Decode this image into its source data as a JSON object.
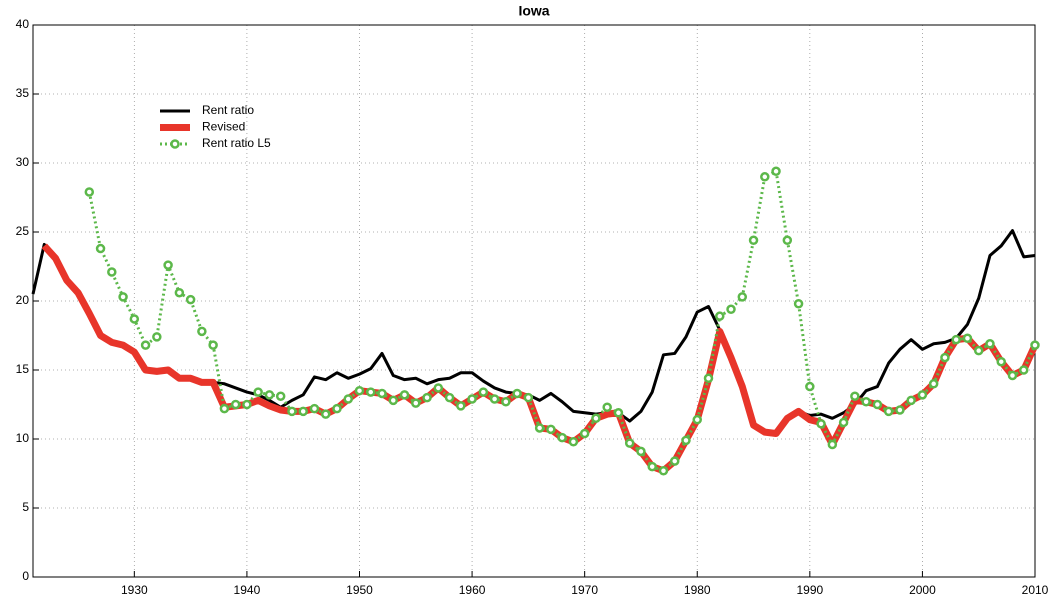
{
  "chart_data": {
    "type": "line",
    "title": "Iowa",
    "x": [
      1921,
      1922,
      1923,
      1924,
      1925,
      1926,
      1927,
      1928,
      1929,
      1930,
      1931,
      1932,
      1933,
      1934,
      1935,
      1936,
      1937,
      1938,
      1939,
      1940,
      1941,
      1942,
      1943,
      1944,
      1945,
      1946,
      1947,
      1948,
      1949,
      1950,
      1951,
      1952,
      1953,
      1954,
      1955,
      1956,
      1957,
      1958,
      1959,
      1960,
      1961,
      1962,
      1963,
      1964,
      1965,
      1966,
      1967,
      1968,
      1969,
      1970,
      1971,
      1972,
      1973,
      1974,
      1975,
      1976,
      1977,
      1978,
      1979,
      1980,
      1981,
      1982,
      1983,
      1984,
      1985,
      1986,
      1987,
      1988,
      1989,
      1990,
      1991,
      1992,
      1993,
      1994,
      1995,
      1996,
      1997,
      1998,
      1999,
      2000,
      2001,
      2002,
      2003,
      2004,
      2005,
      2006,
      2007,
      2008,
      2009,
      2010
    ],
    "series": [
      {
        "name": "Rent ratio",
        "color": "#000000",
        "width": 3,
        "values": [
          20.5,
          24.1,
          23.1,
          21.5,
          20.6,
          19.1,
          17.5,
          17.0,
          16.8,
          16.3,
          15.0,
          14.9,
          15.0,
          14.4,
          14.4,
          14.1,
          14.1,
          14.0,
          13.7,
          13.4,
          13.2,
          12.8,
          12.3,
          12.8,
          13.2,
          14.5,
          14.3,
          14.8,
          14.4,
          14.7,
          15.1,
          16.2,
          14.6,
          14.3,
          14.4,
          14.0,
          14.3,
          14.4,
          14.8,
          14.8,
          14.2,
          13.7,
          13.4,
          13.3,
          13.2,
          12.8,
          13.3,
          12.7,
          12.0,
          11.9,
          11.8,
          11.9,
          11.9,
          11.3,
          12.0,
          13.4,
          16.1,
          16.2,
          17.4,
          19.2,
          19.6,
          17.9,
          15.9,
          13.8,
          11.0,
          10.5,
          10.4,
          11.5,
          12.0,
          11.7,
          11.8,
          11.5,
          11.9,
          12.5,
          13.5,
          13.8,
          15.5,
          16.5,
          17.2,
          16.5,
          16.9,
          17.0,
          17.3,
          18.3,
          20.2,
          23.3,
          24.0,
          25.1,
          23.2,
          23.3
        ]
      },
      {
        "name": "Revised",
        "color": "#e8352a",
        "width": 7,
        "values": [
          null,
          24.0,
          23.1,
          21.5,
          20.6,
          19.1,
          17.5,
          17.0,
          16.8,
          16.3,
          15.0,
          14.9,
          15.0,
          14.4,
          14.4,
          14.1,
          14.1,
          12.3,
          12.4,
          12.5,
          12.8,
          12.4,
          12.1,
          12.0,
          12.0,
          12.2,
          11.8,
          12.2,
          12.9,
          13.5,
          13.4,
          13.3,
          12.8,
          13.2,
          12.6,
          13.0,
          13.7,
          13.0,
          12.4,
          12.9,
          13.4,
          12.9,
          12.7,
          13.3,
          13.0,
          10.8,
          10.7,
          10.1,
          9.8,
          10.4,
          11.5,
          11.8,
          11.9,
          9.7,
          9.1,
          8.0,
          7.7,
          8.4,
          9.9,
          11.4,
          14.3,
          17.8,
          15.9,
          13.8,
          11.0,
          10.5,
          10.4,
          11.5,
          12.0,
          11.4,
          11.2,
          9.6,
          11.2,
          12.8,
          12.7,
          12.5,
          12.0,
          12.1,
          12.8,
          13.2,
          14.0,
          15.9,
          17.2,
          17.3,
          16.4,
          16.9,
          15.6,
          14.6,
          15.0,
          16.8
        ]
      },
      {
        "name": "Rent ratio L5",
        "color": "#5cb84a",
        "width": 3,
        "dashed": true,
        "markers": true,
        "values": [
          null,
          null,
          null,
          null,
          null,
          27.9,
          23.8,
          22.1,
          20.3,
          18.7,
          16.8,
          17.4,
          22.6,
          20.6,
          20.1,
          17.8,
          16.8,
          12.2,
          12.5,
          12.5,
          13.4,
          13.2,
          13.1,
          12.0,
          12.0,
          12.2,
          11.8,
          12.2,
          12.9,
          13.5,
          13.4,
          13.3,
          12.8,
          13.2,
          12.6,
          13.0,
          13.7,
          13.0,
          12.4,
          12.9,
          13.4,
          12.9,
          12.7,
          13.3,
          13.0,
          10.8,
          10.7,
          10.1,
          9.8,
          10.4,
          11.5,
          12.3,
          11.9,
          9.7,
          9.1,
          8.0,
          7.7,
          8.4,
          9.9,
          11.4,
          14.4,
          18.9,
          19.4,
          20.3,
          24.4,
          29.0,
          29.4,
          24.4,
          19.8,
          13.8,
          11.1,
          9.6,
          11.2,
          13.1,
          12.7,
          12.5,
          12.0,
          12.1,
          12.8,
          13.2,
          14.0,
          15.9,
          17.2,
          17.3,
          16.4,
          16.9,
          15.6,
          14.6,
          15.0,
          16.8
        ]
      }
    ],
    "xlim": [
      1921,
      2010
    ],
    "xticks": [
      1930,
      1940,
      1950,
      1960,
      1970,
      1980,
      1990,
      2000,
      2010
    ],
    "ylim": [
      0,
      40
    ],
    "yticks": [
      0,
      5,
      10,
      15,
      20,
      25,
      30,
      35,
      40
    ],
    "grid": true,
    "legend": "upper-left"
  }
}
